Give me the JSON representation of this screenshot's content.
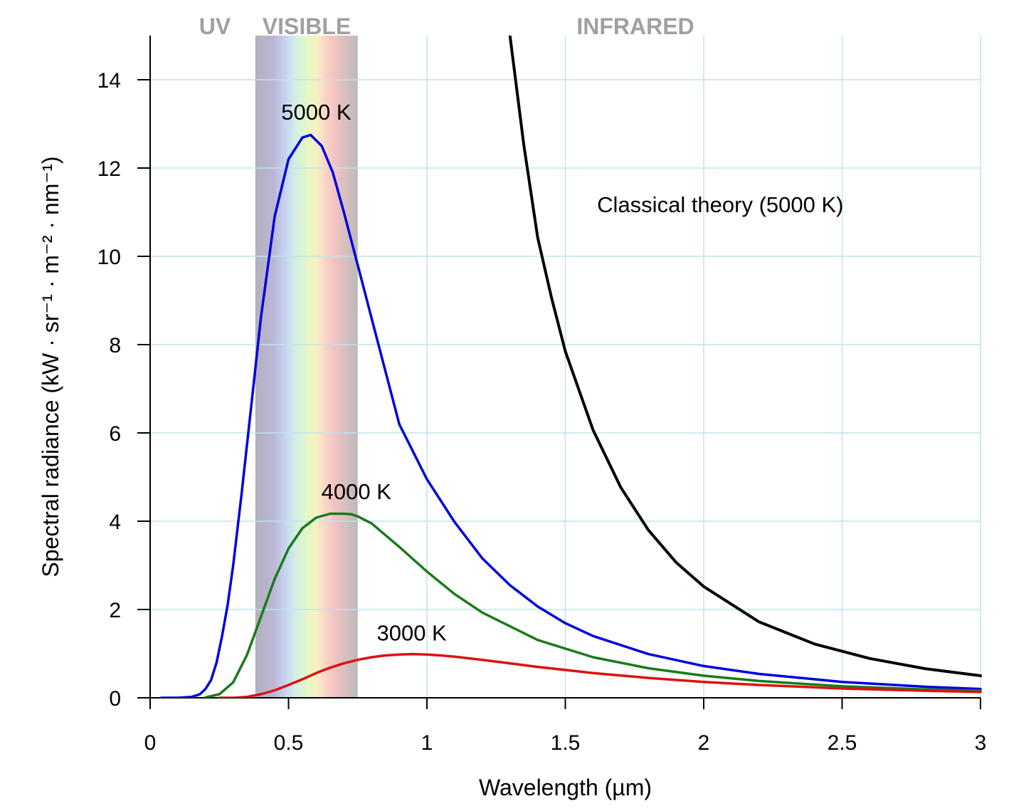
{
  "chart_data": {
    "type": "line",
    "xlabel": "Wavelength (µm)",
    "ylabel": "Spectral radiance (kW · sr⁻¹ · m⁻² · nm⁻¹)",
    "xlim": [
      0,
      3
    ],
    "ylim": [
      0,
      15
    ],
    "grid": true,
    "x_ticks": [
      0,
      0.5,
      1,
      1.5,
      2,
      2.5,
      3
    ],
    "x_tick_labels": [
      "0",
      "0.5",
      "1",
      "1.5",
      "2",
      "2.5",
      "3"
    ],
    "y_ticks": [
      0,
      2,
      4,
      6,
      8,
      10,
      12,
      14
    ],
    "y_tick_labels": [
      "0",
      "2",
      "4",
      "6",
      "8",
      "10",
      "12",
      "14"
    ],
    "regions": [
      {
        "label": "UV",
        "x_range": [
          0,
          0.38
        ]
      },
      {
        "label": "VISIBLE",
        "x_range": [
          0.38,
          0.75
        ]
      },
      {
        "label": "INFRARED",
        "x_range": [
          0.75,
          3
        ]
      }
    ],
    "series": [
      {
        "name": "5000 K",
        "color": "#0000dd",
        "x": [
          0.04,
          0.1,
          0.15,
          0.18,
          0.2,
          0.22,
          0.24,
          0.26,
          0.28,
          0.3,
          0.33,
          0.36,
          0.4,
          0.45,
          0.5,
          0.55,
          0.58,
          0.62,
          0.66,
          0.7,
          0.75,
          0.8,
          0.9,
          1.0,
          1.1,
          1.2,
          1.3,
          1.4,
          1.5,
          1.6,
          1.8,
          2.0,
          2.2,
          2.5,
          2.8,
          3.0
        ],
        "y": [
          0,
          0,
          0.02,
          0.08,
          0.2,
          0.4,
          0.8,
          1.4,
          2.1,
          3.0,
          4.6,
          6.3,
          8.6,
          10.9,
          12.2,
          12.69,
          12.75,
          12.5,
          11.9,
          11.0,
          9.8,
          8.6,
          6.2,
          4.95,
          3.98,
          3.16,
          2.55,
          2.07,
          1.69,
          1.4,
          0.99,
          0.72,
          0.54,
          0.36,
          0.25,
          0.2
        ]
      },
      {
        "name": "4000 K",
        "color": "#1a7a1a",
        "x": [
          0.2,
          0.25,
          0.3,
          0.35,
          0.4,
          0.45,
          0.5,
          0.55,
          0.6,
          0.65,
          0.7,
          0.725,
          0.75,
          0.8,
          0.9,
          1.0,
          1.1,
          1.2,
          1.4,
          1.6,
          1.8,
          2.0,
          2.2,
          2.5,
          2.8,
          3.0
        ],
        "y": [
          0.01,
          0.08,
          0.35,
          0.97,
          1.83,
          2.69,
          3.38,
          3.84,
          4.08,
          4.17,
          4.17,
          4.16,
          4.11,
          3.95,
          3.42,
          2.86,
          2.35,
          1.93,
          1.31,
          0.92,
          0.67,
          0.5,
          0.38,
          0.26,
          0.19,
          0.16
        ]
      },
      {
        "name": "3000 K",
        "color": "#dd1111",
        "x": [
          0.25,
          0.3,
          0.35,
          0.4,
          0.45,
          0.5,
          0.55,
          0.6,
          0.65,
          0.7,
          0.75,
          0.8,
          0.85,
          0.9,
          0.95,
          1.0,
          1.05,
          1.1,
          1.2,
          1.3,
          1.4,
          1.6,
          1.8,
          2.0,
          2.2,
          2.5,
          2.8,
          3.0
        ],
        "y": [
          0.0,
          0.0,
          0.02,
          0.08,
          0.17,
          0.29,
          0.42,
          0.56,
          0.68,
          0.78,
          0.86,
          0.92,
          0.96,
          0.98,
          0.99,
          0.98,
          0.96,
          0.93,
          0.86,
          0.78,
          0.7,
          0.56,
          0.45,
          0.36,
          0.29,
          0.21,
          0.16,
          0.13
        ]
      },
      {
        "name": "Classical theory (5000 K)",
        "color": "#000000",
        "x": [
          1.3,
          1.35,
          1.4,
          1.45,
          1.5,
          1.6,
          1.7,
          1.8,
          1.9,
          2.0,
          2.2,
          2.4,
          2.6,
          2.8,
          3.0
        ],
        "y": [
          15.0,
          12.53,
          10.43,
          9.07,
          7.85,
          6.07,
          4.77,
          3.8,
          3.07,
          2.52,
          1.72,
          1.22,
          0.89,
          0.66,
          0.5
        ]
      }
    ],
    "labels": [
      {
        "text": "5000 K",
        "x": 0.6,
        "y": 13.1
      },
      {
        "text": "4000 K",
        "x": 0.745,
        "y": 4.5
      },
      {
        "text": "3000 K",
        "x": 0.945,
        "y": 1.3
      },
      {
        "text": "Classical theory (5000 K)",
        "x": 2.06,
        "y": 11.0
      }
    ]
  }
}
